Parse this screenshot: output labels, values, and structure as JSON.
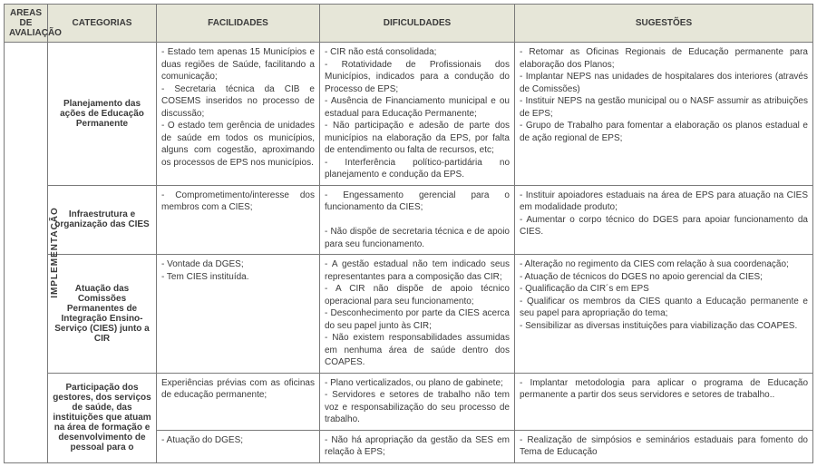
{
  "headers": {
    "areas": "AREAS DE AVALIAÇÃO",
    "categorias": "CATEGORIAS",
    "facilidades": "FACILIDADES",
    "dificuldades": "DIFICULDADES",
    "sugestoes": "SUGESTÕES"
  },
  "area_label": "IMPLEMENTAÇÃO",
  "rows": [
    {
      "categoria": "Planejamento das ações de Educação Permanente",
      "facilidades": "- Estado tem apenas 15 Municípios e duas regiões de Saúde, facilitando a comunicação;\n- Secretaria técnica da CIB e COSEMS inseridos no processo de discussão;\n- O estado tem gerência de unidades de saúde em todos os municípios, alguns com cogestão, aproximando os processos de EPS nos municípios.",
      "dificuldades": "- CIR não está consolidada;\n- Rotatividade de Profissionais dos Municípios, indicados para a condução do Processo de EPS;\n- Ausência de Financiamento municipal e ou estadual para Educação Permanente;\n- Não participação e adesão de parte dos municípios na elaboração da EPS, por falta de entendimento ou falta de recursos, etc;\n- Interferência político-partidária no planejamento e condução da EPS.",
      "sugestoes": "- Retomar as Oficinas Regionais de Educação permanente para elaboração dos Planos;\n- Implantar NEPS nas unidades de hospitalares dos interiores (através de Comissões)\n- Instituir NEPS na gestão municipal ou o NASF assumir as atribuições de EPS;\n- Grupo de Trabalho para fomentar a elaboração os planos estadual e de ação regional de EPS;"
    },
    {
      "categoria": "Infraestrutura e organização das CIES",
      "facilidades": "- Comprometimento/interesse dos membros com a CIES;",
      "dificuldades": "- Engessamento gerencial para o funcionamento da CIES;\n\n- Não dispõe de secretaria técnica e de apoio para seu funcionamento.",
      "sugestoes": "- Instituir apoiadores estaduais na área de EPS para atuação na CIES em modalidade produto;\n- Aumentar o corpo técnico do DGES para apoiar funcionamento da CIES."
    },
    {
      "categoria": "Atuação das Comissões Permanentes de Integração Ensino-Serviço (CIES) junto a CIR",
      "facilidades": "- Vontade da DGES;\n- Tem CIES instituída.",
      "dificuldades": "- A gestão estadual não tem indicado seus representantes para a composição das CIR;\n- A CIR não dispõe de apoio técnico operacional para seu funcionamento;\n- Desconhecimento por parte da CIES acerca do seu papel junto às CIR;\n- Não existem responsabilidades assumidas em nenhuma área de saúde dentro dos COAPES.",
      "sugestoes": "- Alteração no regimento da CIES com relação à sua coordenação;\n- Atuação de técnicos do DGES no apoio gerencial da CIES;\n- Qualificação da CIR´s em EPS\n- Qualificar os membros da CIES quanto a Educação permanente e seu papel para apropriação do tema;\n- Sensibilizar as diversas instituições para viabilização das COAPES."
    },
    {
      "categoria": "Participação dos gestores, dos serviços de saúde, das instituições que atuam na área de formação e desenvolvimento de pessoal para o",
      "facilidades_a": "Experiências prévias com as oficinas de educação permanente;",
      "dificuldades_a": "- Plano verticalizados, ou plano de gabinete;\n- Servidores e setores de trabalho não tem voz e responsabilização do seu processo de trabalho.",
      "sugestoes_a": "- Implantar metodologia para aplicar o programa de Educação permanente a partir dos seus servidores e setores de trabalho..",
      "facilidades_b": "- Atuação do DGES;",
      "dificuldades_b": "- Não há apropriação da gestão da SES em relação à EPS;",
      "sugestoes_b": "- Realização de simpósios e seminários estaduais para fomento do Tema de Educação"
    }
  ]
}
